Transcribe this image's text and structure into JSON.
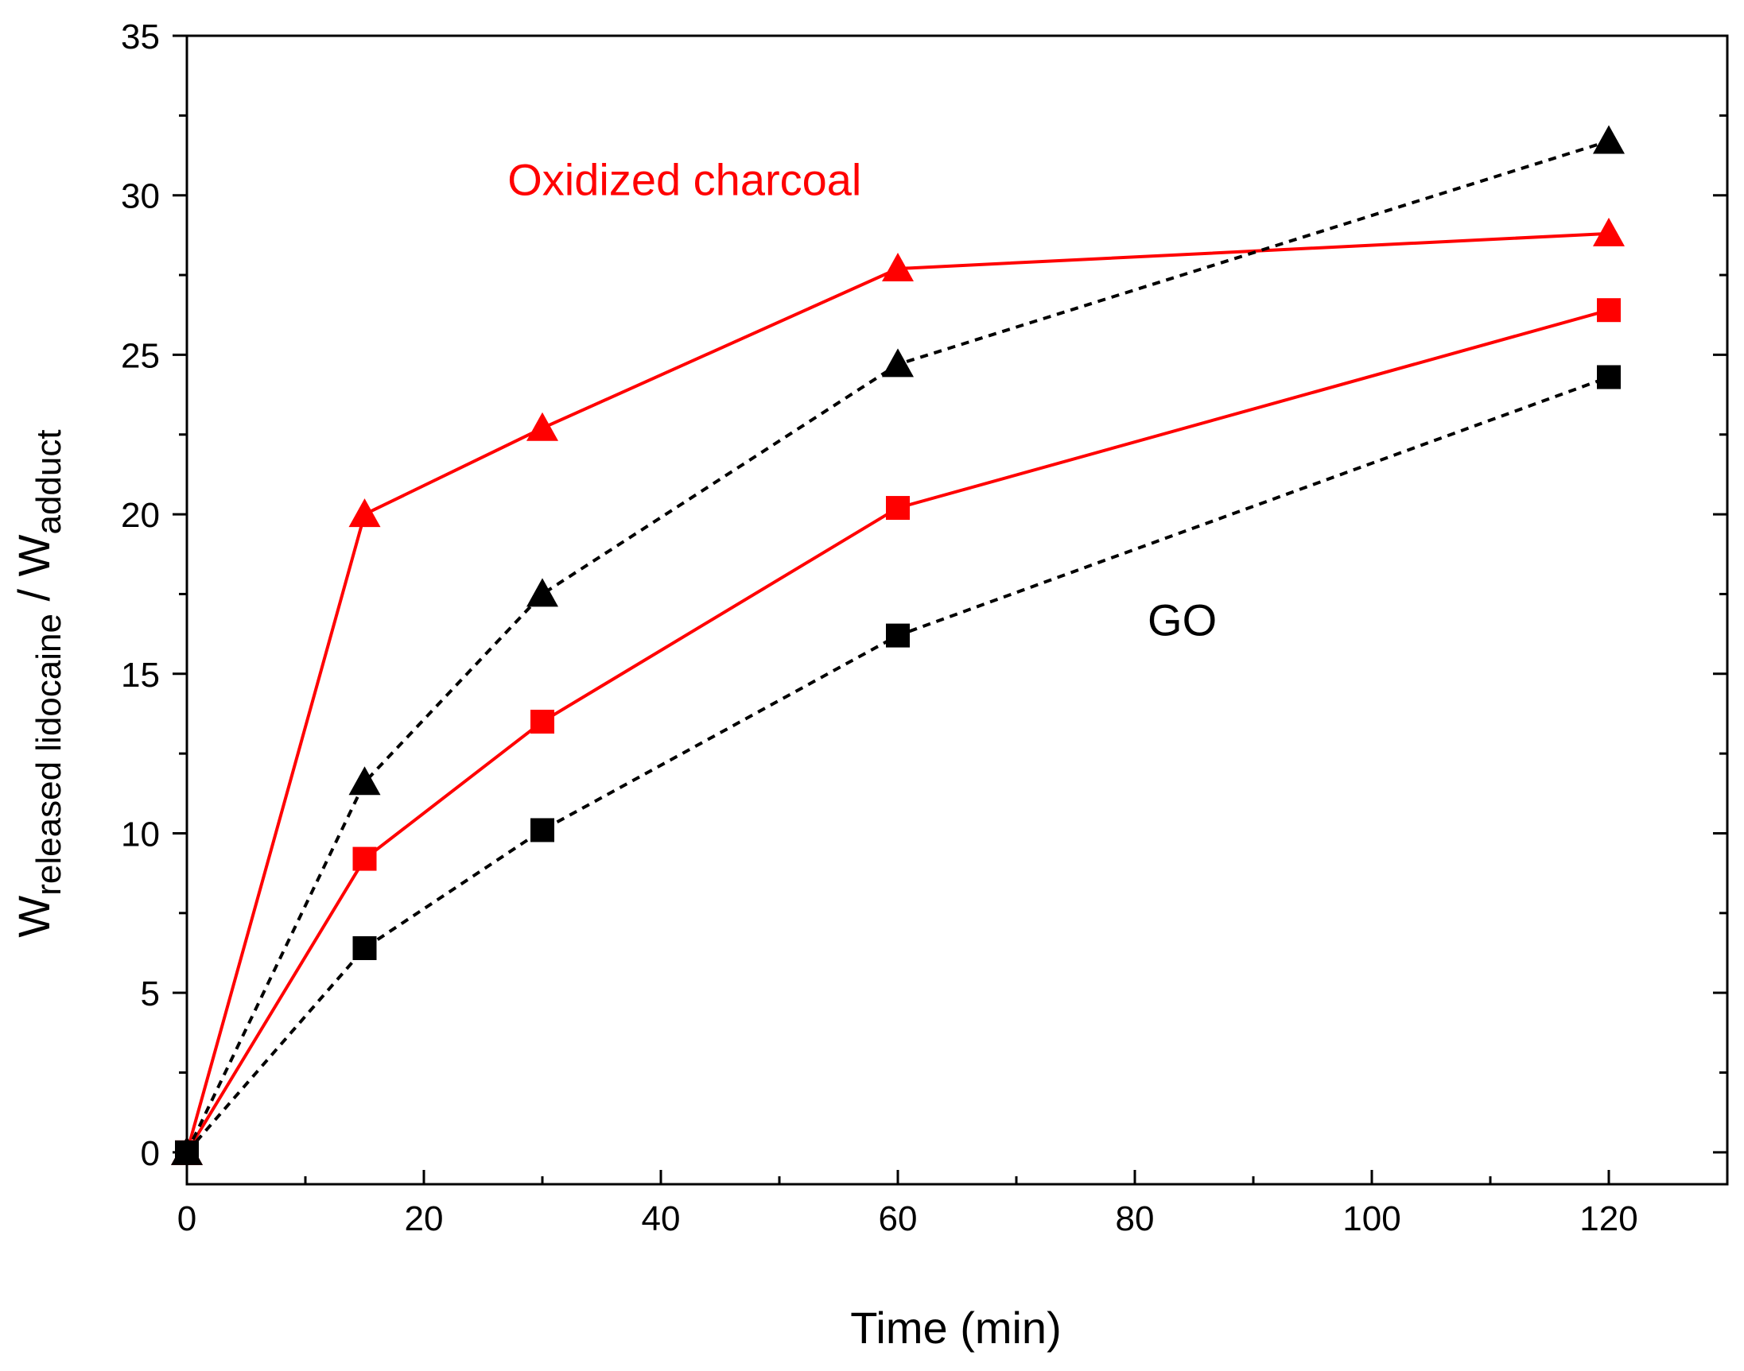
{
  "chart_data": {
    "type": "line",
    "title": "",
    "xlabel": "Time (min)",
    "ylabel": {
      "base1": "W",
      "sub1": "released lidocaine",
      "mid": " / W",
      "sub2": "adduct"
    },
    "xlim": [
      0,
      130
    ],
    "ylim": [
      -1,
      35
    ],
    "x_major_ticks": [
      0,
      20,
      40,
      60,
      80,
      100,
      120
    ],
    "x_minor_ticks": [
      10,
      30,
      50,
      70,
      90,
      110,
      130
    ],
    "y_major_ticks": [
      0,
      5,
      10,
      15,
      20,
      25,
      30,
      35
    ],
    "y_minor_ticks": [
      2.5,
      7.5,
      12.5,
      17.5,
      22.5,
      27.5,
      32.5
    ],
    "x_tick_labels": [
      "0",
      "20",
      "40",
      "60",
      "80",
      "100",
      "120"
    ],
    "y_tick_labels": [
      "0",
      "5",
      "10",
      "15",
      "20",
      "25",
      "30",
      "35"
    ],
    "grid": false,
    "legend": "none",
    "annotations": [
      {
        "text": "Oxidized charcoal",
        "color": "#ff0000",
        "x": 42,
        "y": 30
      },
      {
        "text": "GO",
        "color": "#000000",
        "x": 84,
        "y": 16.2
      }
    ],
    "series": [
      {
        "color": "#ff0000",
        "marker": "triangle",
        "line": "solid",
        "x": [
          0,
          15,
          30,
          60,
          120
        ],
        "y": [
          0,
          20.0,
          22.7,
          27.7,
          28.8
        ]
      },
      {
        "color": "#ff0000",
        "marker": "square",
        "line": "solid",
        "x": [
          0,
          15,
          30,
          60,
          120
        ],
        "y": [
          0,
          9.2,
          13.5,
          20.2,
          26.4
        ]
      },
      {
        "color": "#000000",
        "marker": "triangle",
        "line": "dashed",
        "x": [
          0,
          15,
          30,
          60,
          120
        ],
        "y": [
          0,
          11.6,
          17.5,
          24.7,
          31.7
        ]
      },
      {
        "color": "#000000",
        "marker": "square",
        "line": "dashed",
        "x": [
          0,
          15,
          30,
          60,
          120
        ],
        "y": [
          0,
          6.4,
          10.1,
          16.2,
          24.3
        ]
      }
    ]
  }
}
